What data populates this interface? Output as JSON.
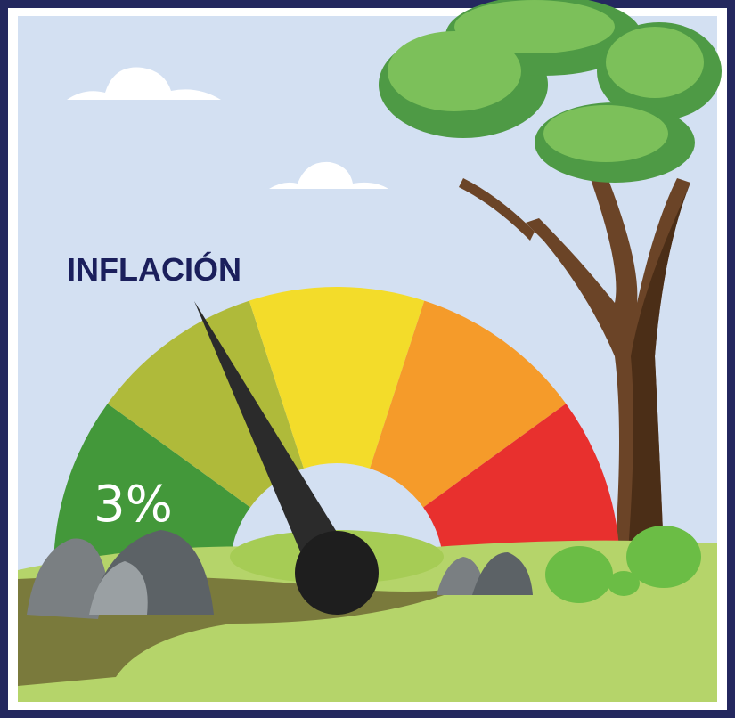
{
  "title": "INFLACIÓN",
  "gauge_label": "3%"
}
